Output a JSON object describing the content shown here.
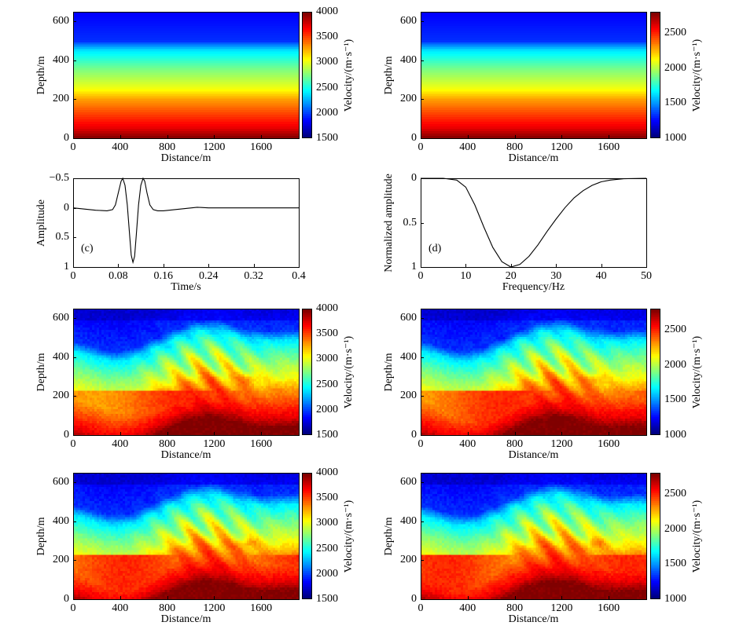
{
  "chart_data": [
    {
      "id": "a",
      "type": "heatmap",
      "title": "",
      "xlabel": "Distance/m",
      "ylabel": "Depth/m",
      "xlim": [
        0,
        1920
      ],
      "ylim": [
        650,
        0
      ],
      "xticks": [
        0,
        400,
        800,
        1200,
        1600
      ],
      "yticks": [
        0,
        200,
        400,
        600
      ],
      "field": "true-model",
      "colorbar": {
        "label": "Velocity/(m·s⁻¹)",
        "ticks": [
          1500,
          2000,
          2500,
          3000,
          3500,
          4000
        ],
        "range": [
          1500,
          4000
        ],
        "colormap": "jet"
      }
    },
    {
      "id": "b",
      "type": "heatmap",
      "title": "",
      "xlabel": "Distance/m",
      "ylabel": "Depth/m",
      "xlim": [
        0,
        1920
      ],
      "ylim": [
        650,
        0
      ],
      "xticks": [
        0,
        400,
        800,
        1200,
        1600
      ],
      "yticks": [
        0,
        200,
        400,
        600
      ],
      "field": "true-model",
      "colorbar": {
        "label": "Velocity/(m·s⁻¹)",
        "ticks": [
          1000,
          1500,
          2000,
          2500
        ],
        "range": [
          1000,
          2800
        ],
        "colormap": "jet"
      }
    },
    {
      "id": "c",
      "type": "line",
      "label": "(c)",
      "xlabel": "Time/s",
      "ylabel": "Amplitude",
      "xlim": [
        0,
        0.4
      ],
      "ylim": [
        -0.5,
        1
      ],
      "xticks": [
        0,
        0.08,
        0.16,
        0.24,
        0.32,
        0.4
      ],
      "yticks": [
        -0.5,
        0,
        0.5,
        1
      ],
      "x": [
        0,
        0.02,
        0.04,
        0.06,
        0.07,
        0.075,
        0.08,
        0.085,
        0.088,
        0.092,
        0.096,
        0.1,
        0.103,
        0.106,
        0.109,
        0.112,
        0.116,
        0.12,
        0.124,
        0.127,
        0.131,
        0.136,
        0.142,
        0.15,
        0.16,
        0.18,
        0.2,
        0.22,
        0.24,
        0.3,
        0.4
      ],
      "y": [
        0,
        0.02,
        0.04,
        0.05,
        0.03,
        -0.05,
        -0.25,
        -0.45,
        -0.5,
        -0.38,
        -0.05,
        0.45,
        0.8,
        0.92,
        0.82,
        0.45,
        -0.05,
        -0.38,
        -0.5,
        -0.45,
        -0.25,
        -0.05,
        0.03,
        0.05,
        0.05,
        0.03,
        0.01,
        -0.01,
        0,
        0,
        0
      ]
    },
    {
      "id": "d",
      "type": "line",
      "label": "(d)",
      "xlabel": "Frequency/Hz",
      "ylabel": "Normalized amplitude",
      "xlim": [
        0,
        50
      ],
      "ylim": [
        0,
        1
      ],
      "xticks": [
        0,
        10,
        20,
        30,
        40,
        50
      ],
      "yticks": [
        0,
        0.5,
        1
      ],
      "x": [
        0,
        5,
        8,
        10,
        12,
        14,
        16,
        18,
        20,
        22,
        24,
        26,
        28,
        30,
        32,
        34,
        36,
        38,
        40,
        42,
        45,
        50
      ],
      "y": [
        0,
        0,
        0.02,
        0.1,
        0.3,
        0.55,
        0.78,
        0.94,
        1,
        0.97,
        0.88,
        0.75,
        0.6,
        0.46,
        0.33,
        0.22,
        0.14,
        0.08,
        0.04,
        0.02,
        0.005,
        0
      ]
    },
    {
      "id": "e",
      "type": "heatmap",
      "xlabel": "Distance/m",
      "ylabel": "Depth/m",
      "xlim": [
        0,
        1920
      ],
      "ylim": [
        650,
        0
      ],
      "xticks": [
        0,
        400,
        800,
        1200,
        1600
      ],
      "yticks": [
        0,
        200,
        400,
        600
      ],
      "field": "inverted-model",
      "colorbar": {
        "label": "Velocity/(m·s⁻¹)",
        "ticks": [
          1500,
          2000,
          2500,
          3000,
          3500,
          4000
        ],
        "range": [
          1500,
          4000
        ],
        "colormap": "jet"
      }
    },
    {
      "id": "f",
      "type": "heatmap",
      "xlabel": "Distance/m",
      "ylabel": "Depth/m",
      "xlim": [
        0,
        1920
      ],
      "ylim": [
        650,
        0
      ],
      "xticks": [
        0,
        400,
        800,
        1200,
        1600
      ],
      "yticks": [
        0,
        200,
        400,
        600
      ],
      "field": "inverted-model",
      "colorbar": {
        "label": "Velocity/(m·s⁻¹)",
        "ticks": [
          1000,
          1500,
          2000,
          2500
        ],
        "range": [
          1000,
          2800
        ],
        "colormap": "jet"
      }
    },
    {
      "id": "g",
      "type": "heatmap",
      "xlabel": "Distance/m",
      "ylabel": "Depth/m",
      "xlim": [
        0,
        1920
      ],
      "ylim": [
        650,
        0
      ],
      "xticks": [
        0,
        400,
        800,
        1200,
        1600
      ],
      "yticks": [
        0,
        200,
        400,
        600
      ],
      "field": "inverted-model",
      "colorbar": {
        "label": "Velocity/(m·s⁻¹)",
        "ticks": [
          1500,
          2000,
          2500,
          3000,
          3500,
          4000
        ],
        "range": [
          1500,
          4000
        ],
        "colormap": "jet"
      }
    },
    {
      "id": "h",
      "type": "heatmap",
      "xlabel": "Distance/m",
      "ylabel": "Depth/m",
      "xlim": [
        0,
        1920
      ],
      "ylim": [
        650,
        0
      ],
      "xticks": [
        0,
        400,
        800,
        1200,
        1600
      ],
      "yticks": [
        0,
        200,
        400,
        600
      ],
      "field": "inverted-model",
      "colorbar": {
        "label": "Velocity/(m·s⁻¹)",
        "ticks": [
          1000,
          1500,
          2000,
          2500
        ],
        "range": [
          1000,
          2800
        ],
        "colormap": "jet"
      }
    }
  ]
}
